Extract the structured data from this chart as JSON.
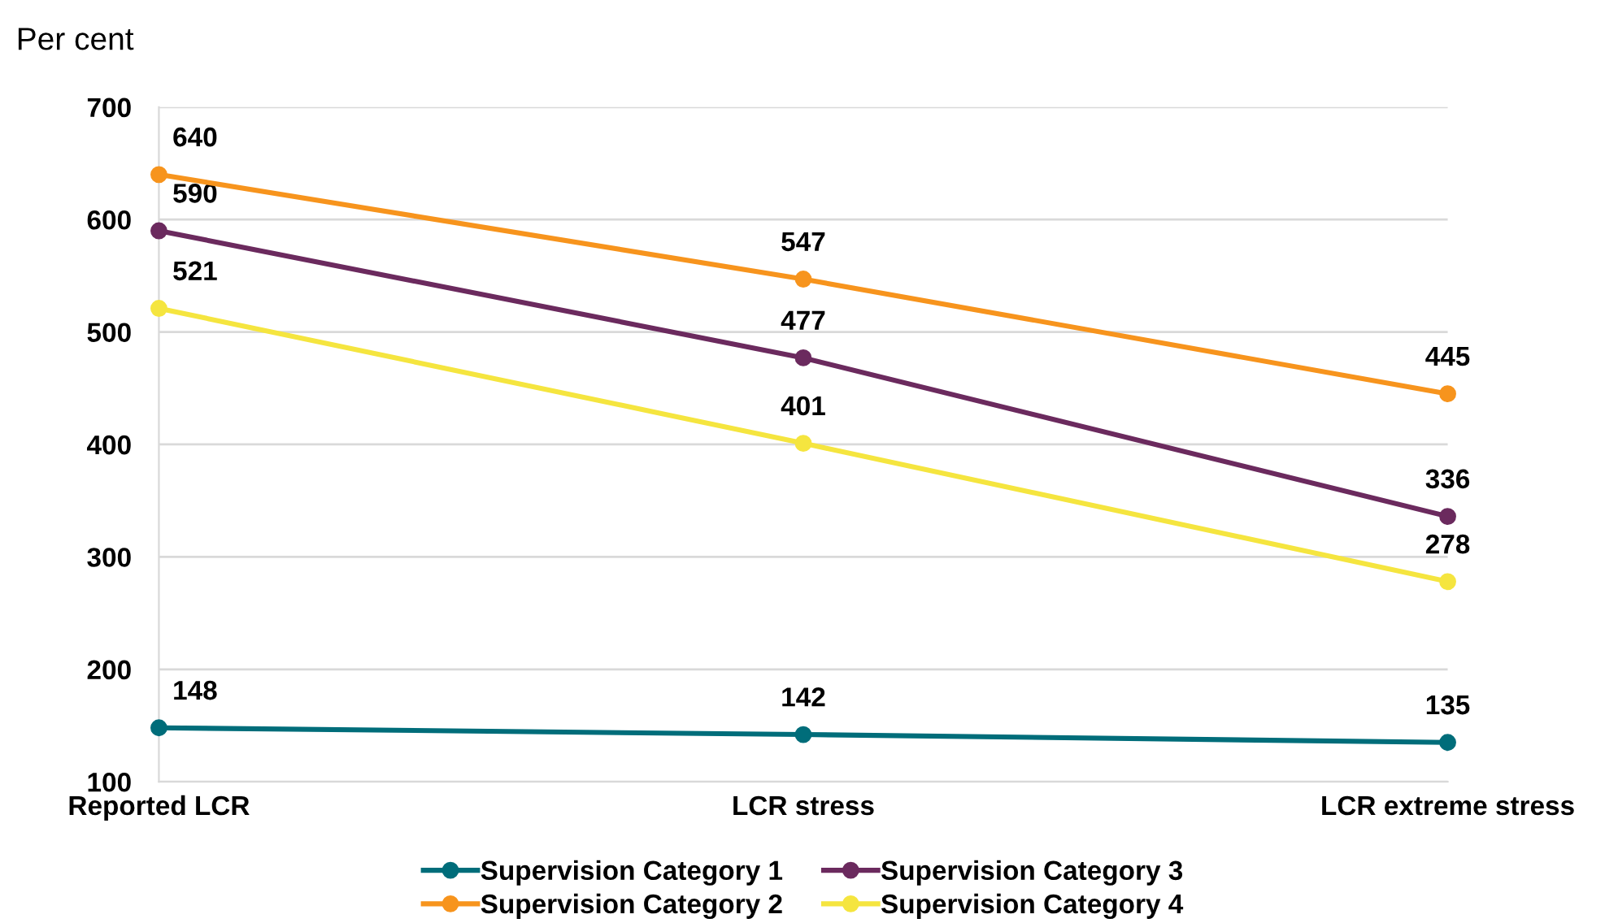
{
  "chart_data": {
    "type": "line",
    "ylabel": "Per cent",
    "categories": [
      "Reported LCR",
      "LCR stress",
      "LCR extreme stress"
    ],
    "series": [
      {
        "name": "Supervision Category 1",
        "color": "#006d7a",
        "values": [
          148,
          142,
          135
        ]
      },
      {
        "name": "Supervision Category 2",
        "color": "#f7941d",
        "values": [
          640,
          547,
          445
        ]
      },
      {
        "name": "Supervision Category 3",
        "color": "#6b2a5e",
        "values": [
          590,
          477,
          336
        ]
      },
      {
        "name": "Supervision Category 4",
        "color": "#f5e53f",
        "values": [
          521,
          401,
          278
        ]
      }
    ],
    "ylim": [
      100,
      700
    ],
    "yticks": [
      100,
      200,
      300,
      400,
      500,
      600,
      700
    ],
    "grid": "y",
    "legend": "bottom",
    "marker": "circle",
    "line_style": "solid",
    "data_labels": true
  }
}
